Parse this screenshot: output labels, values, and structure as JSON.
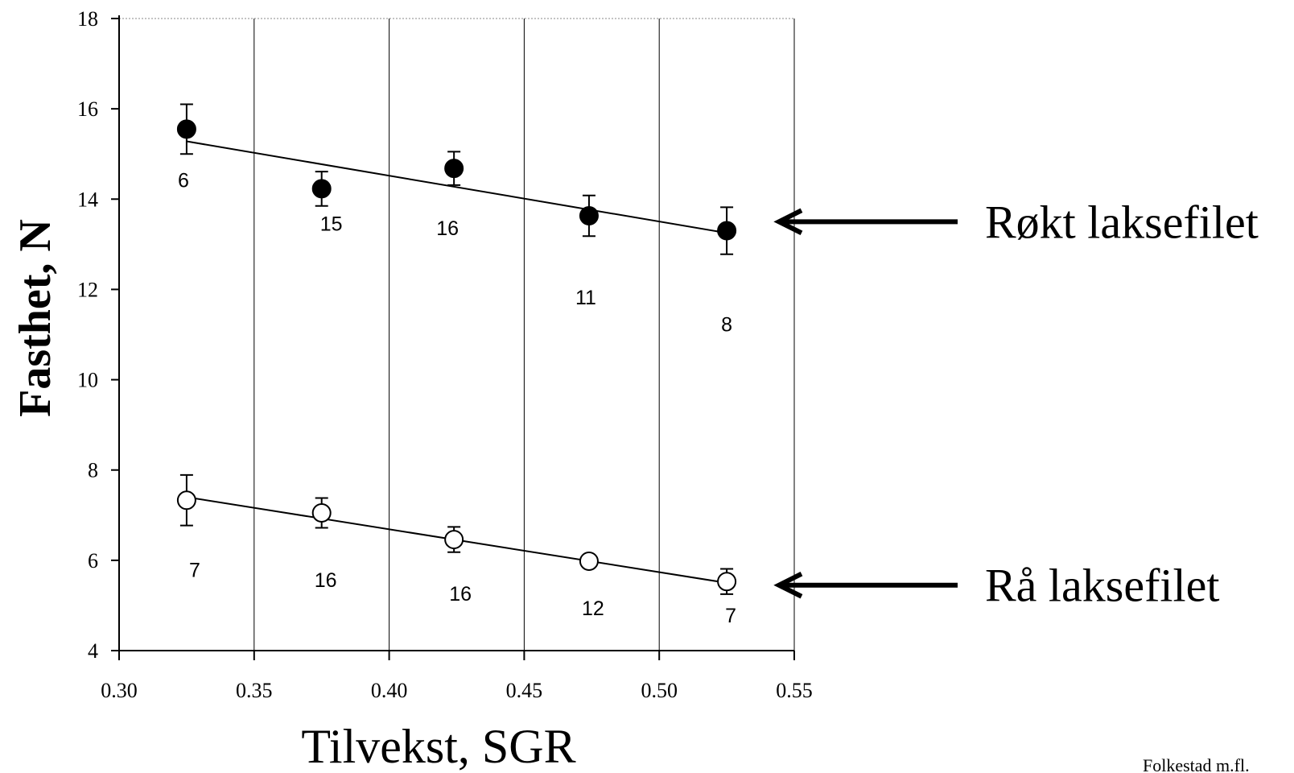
{
  "chart_data": {
    "type": "scatter",
    "xlabel": "Tilvekst, SGR",
    "ylabel": "Fasthet, N",
    "xlim": [
      0.3,
      0.55
    ],
    "ylim": [
      4,
      18
    ],
    "x_ticks": [
      "0.30",
      "0.35",
      "0.40",
      "0.45",
      "0.50",
      "0.55"
    ],
    "y_ticks": [
      "4",
      "6",
      "8",
      "10",
      "12",
      "14",
      "16",
      "18"
    ],
    "grid": "vertical",
    "series": [
      {
        "name": "Røkt laksefilet",
        "marker": "filled-circle",
        "points": [
          {
            "x": 0.325,
            "y": 15.55,
            "err": 0.55,
            "n": "6"
          },
          {
            "x": 0.375,
            "y": 14.23,
            "err": 0.38,
            "n": "15"
          },
          {
            "x": 0.424,
            "y": 14.68,
            "err": 0.37,
            "n": "16"
          },
          {
            "x": 0.474,
            "y": 13.63,
            "err": 0.45,
            "n": "11"
          },
          {
            "x": 0.525,
            "y": 13.3,
            "err": 0.52,
            "n": "8"
          }
        ],
        "trend": {
          "x": [
            0.325,
            0.525
          ],
          "y": [
            15.28,
            13.25
          ]
        }
      },
      {
        "name": "Rå laksefilet",
        "marker": "open-circle",
        "points": [
          {
            "x": 0.325,
            "y": 7.33,
            "err": 0.56,
            "n": "7"
          },
          {
            "x": 0.375,
            "y": 7.05,
            "err": 0.33,
            "n": "16"
          },
          {
            "x": 0.424,
            "y": 6.46,
            "err": 0.28,
            "n": "16"
          },
          {
            "x": 0.474,
            "y": 5.98,
            "err": 0.12,
            "n": "12"
          },
          {
            "x": 0.525,
            "y": 5.53,
            "err": 0.28,
            "n": "7"
          }
        ],
        "trend": {
          "x": [
            0.325,
            0.525
          ],
          "y": [
            7.4,
            5.5
          ]
        }
      }
    ]
  },
  "credit": "Folkestad m.fl."
}
